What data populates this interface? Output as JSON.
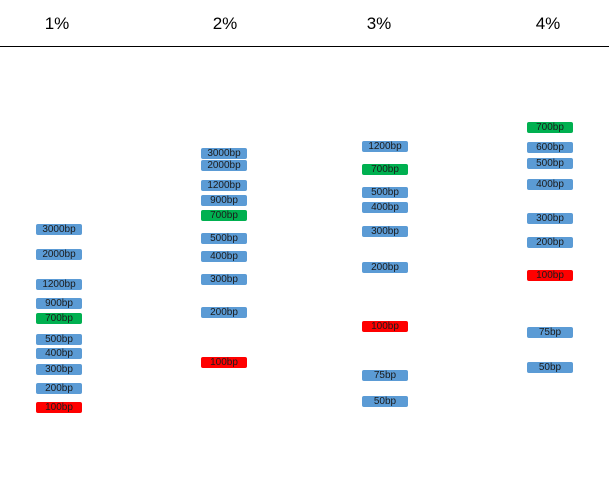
{
  "colors": {
    "ladder": "#5b9bd5",
    "reference_700": "#00b050",
    "reference_100": "#ff0000"
  },
  "lanes": [
    {
      "label": "1%",
      "bands": [
        {
          "label": "3000bp",
          "color": "ladder"
        },
        {
          "label": "2000bp",
          "color": "ladder"
        },
        {
          "label": "1200bp",
          "color": "ladder"
        },
        {
          "label": "900bp",
          "color": "ladder"
        },
        {
          "label": "700bp",
          "color": "reference_700"
        },
        {
          "label": "500bp",
          "color": "ladder"
        },
        {
          "label": "400bp",
          "color": "ladder"
        },
        {
          "label": "300bp",
          "color": "ladder"
        },
        {
          "label": "200bp",
          "color": "ladder"
        },
        {
          "label": "100bp",
          "color": "reference_100"
        }
      ]
    },
    {
      "label": "2%",
      "bands": [
        {
          "label": "3000bp",
          "color": "ladder"
        },
        {
          "label": "2000bp",
          "color": "ladder"
        },
        {
          "label": "1200bp",
          "color": "ladder"
        },
        {
          "label": "900bp",
          "color": "ladder"
        },
        {
          "label": "700bp",
          "color": "reference_700"
        },
        {
          "label": "500bp",
          "color": "ladder"
        },
        {
          "label": "400bp",
          "color": "ladder"
        },
        {
          "label": "300bp",
          "color": "ladder"
        },
        {
          "label": "200bp",
          "color": "ladder"
        },
        {
          "label": "100bp",
          "color": "reference_100"
        }
      ]
    },
    {
      "label": "3%",
      "bands": [
        {
          "label": "1200bp",
          "color": "ladder"
        },
        {
          "label": "700bp",
          "color": "reference_700"
        },
        {
          "label": "500bp",
          "color": "ladder"
        },
        {
          "label": "400bp",
          "color": "ladder"
        },
        {
          "label": "300bp",
          "color": "ladder"
        },
        {
          "label": "200bp",
          "color": "ladder"
        },
        {
          "label": "100bp",
          "color": "reference_100"
        },
        {
          "label": "75bp",
          "color": "ladder"
        },
        {
          "label": "50bp",
          "color": "ladder"
        }
      ]
    },
    {
      "label": "4%",
      "bands": [
        {
          "label": "700bp",
          "color": "reference_700"
        },
        {
          "label": "600bp",
          "color": "ladder"
        },
        {
          "label": "500bp",
          "color": "ladder"
        },
        {
          "label": "400bp",
          "color": "ladder"
        },
        {
          "label": "300bp",
          "color": "ladder"
        },
        {
          "label": "200bp",
          "color": "ladder"
        },
        {
          "label": "100bp",
          "color": "reference_100"
        },
        {
          "label": "75bp",
          "color": "ladder"
        },
        {
          "label": "50bp",
          "color": "ladder"
        }
      ]
    }
  ]
}
